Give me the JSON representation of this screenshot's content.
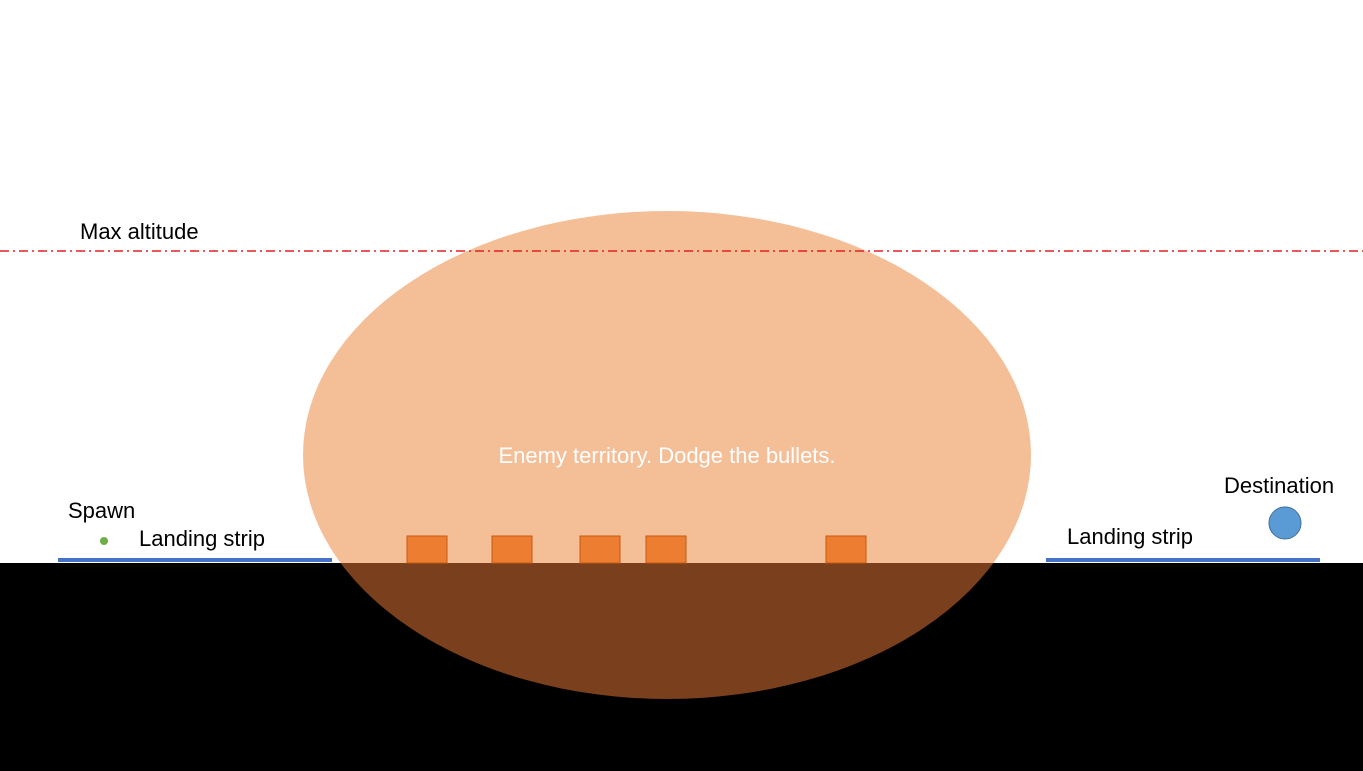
{
  "labels": {
    "max_altitude": "Max altitude",
    "enemy_zone": "Enemy territory. Dodge the bullets.",
    "spawn": "Spawn",
    "landing_strip_left": "Landing strip",
    "landing_strip_right": "Landing strip",
    "destination": "Destination"
  },
  "colors": {
    "background": "#ffffff",
    "ground": "#000000",
    "enemy_zone_above_ground": "#f4be97",
    "enemy_zone_below_ground": "#7a3f1c",
    "turret_fill": "#ed7d31",
    "turret_stroke": "#c55a11",
    "altitude_line": "#e02020",
    "landing_strip": "#4472c4",
    "spawn_point": "#70ad47",
    "destination_fill": "#5b9bd5",
    "destination_stroke": "#41719c",
    "label_text": "#000000",
    "zone_label_text": "#ffffff"
  },
  "objects": {
    "turret_count": 5,
    "altitude_line_style": "dash-dot"
  }
}
